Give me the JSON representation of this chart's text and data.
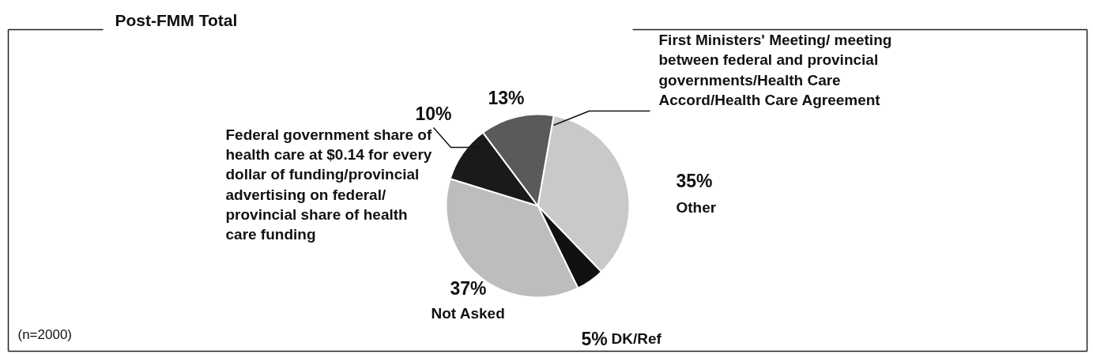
{
  "chart_data": {
    "type": "pie",
    "title": "Post-FMM Total",
    "categories": [
      "Other",
      "DK/Ref",
      "Not Asked",
      "Federal government share of health care at $0.14 for every dollar of funding/provincial advertising on federal/ provincial share of health care funding",
      "First Ministers' Meeting/ meeting between federal and provincial governments/Health Care Accord/Health Care Agreement"
    ],
    "values": [
      35,
      5,
      37,
      10,
      13
    ],
    "colors": [
      "#c9c9c9",
      "#111111",
      "#bdbdbd",
      "#1a1a1a",
      "#5a5a5a"
    ],
    "value_labels": [
      "35%",
      "5%",
      "37%",
      "10%",
      "13%"
    ],
    "annotations": [
      "(n=2000)"
    ]
  }
}
